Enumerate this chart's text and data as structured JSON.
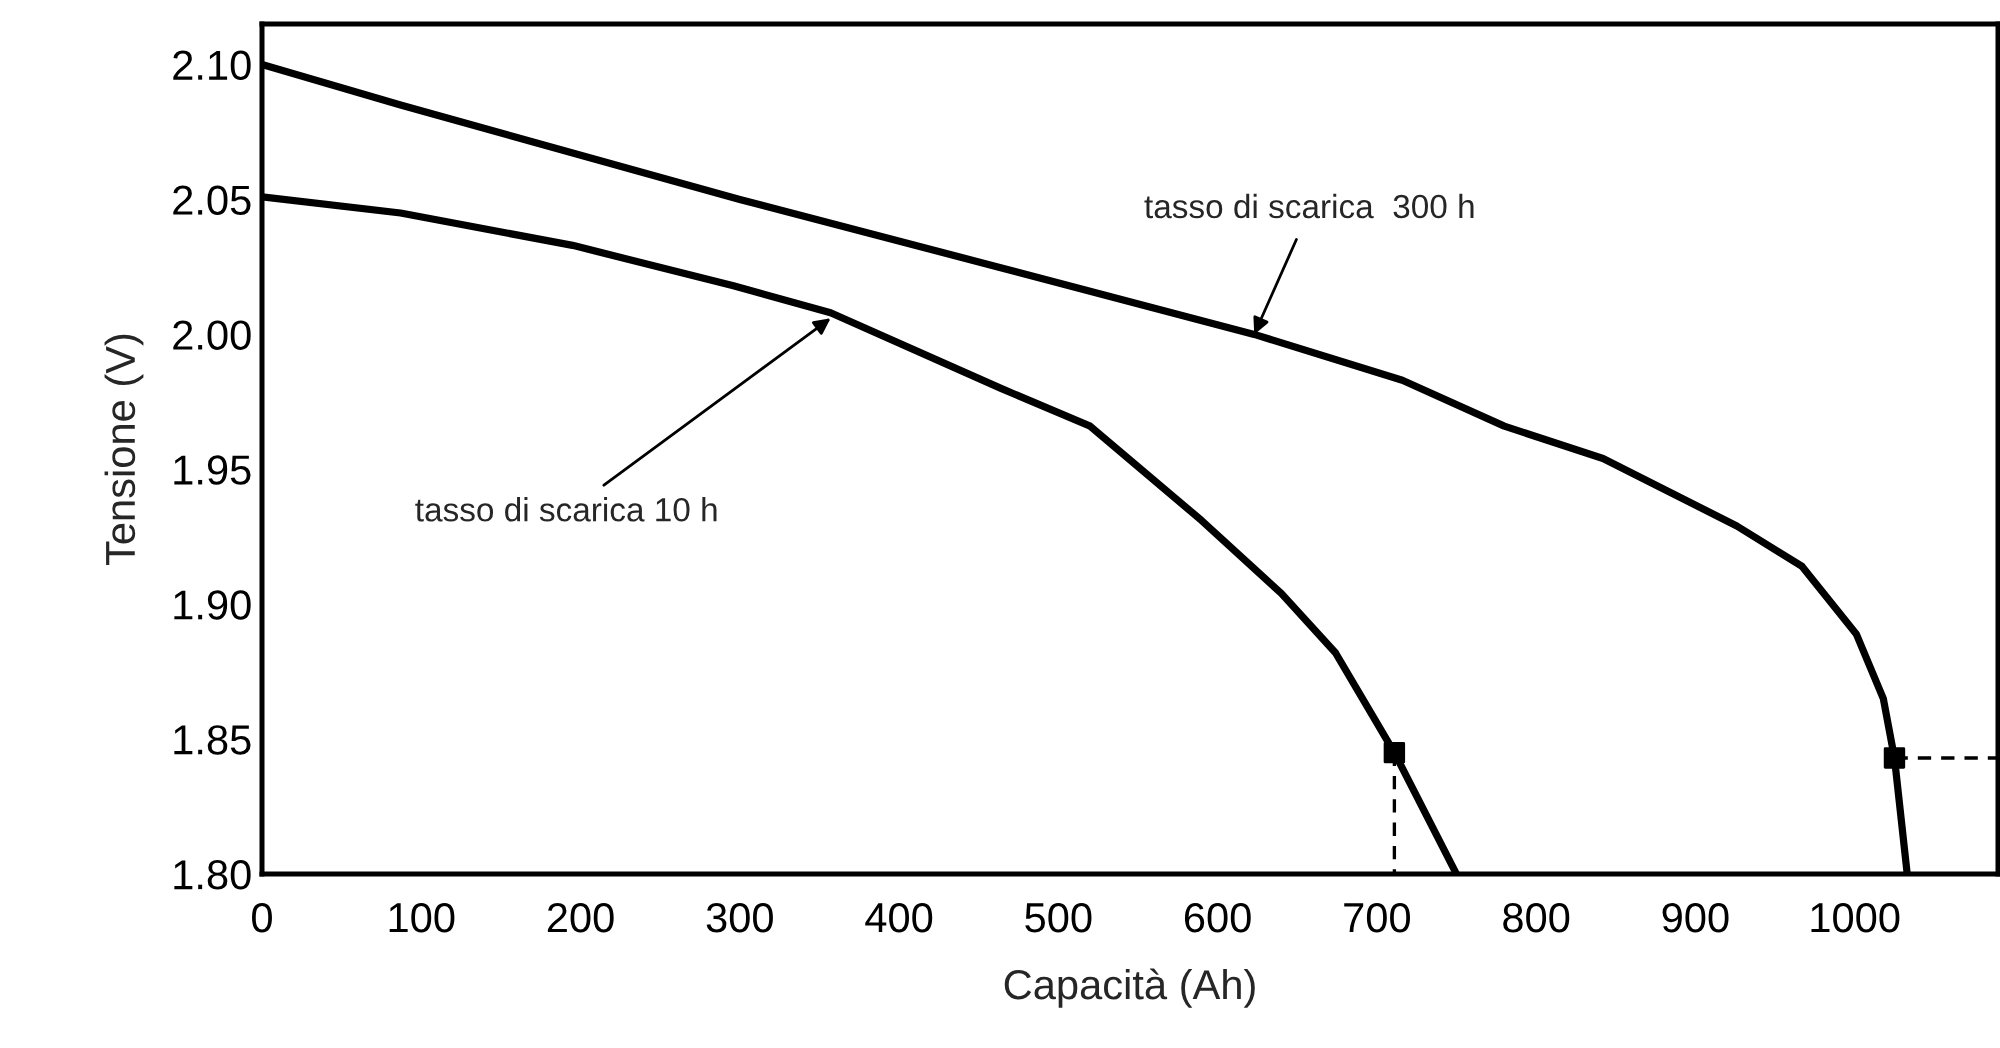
{
  "chart_data": {
    "type": "line",
    "xlabel": "Capacità (Ah)",
    "ylabel": "Tensione (V)",
    "xlim": [
      0,
      1090
    ],
    "ylim": [
      1.8,
      2.115
    ],
    "xticks": [
      0,
      100,
      200,
      300,
      400,
      500,
      600,
      700,
      800,
      900,
      1000
    ],
    "yticks": [
      {
        "value": 1.8,
        "label": "1.80"
      },
      {
        "value": 1.85,
        "label": "1.85"
      },
      {
        "value": 1.9,
        "label": "1.90"
      },
      {
        "value": 1.95,
        "label": "1.95"
      },
      {
        "value": 2.0,
        "label": "2.00"
      },
      {
        "value": 2.05,
        "label": "2.05"
      },
      {
        "value": 2.1,
        "label": "2.10"
      }
    ],
    "grid": false,
    "series": [
      {
        "color": "#000000",
        "x": [
          0,
          87,
          195,
          296,
          357,
          464,
          520,
          590,
          640,
          674,
          711,
          750
        ],
        "values": [
          2.051,
          2.045,
          2.033,
          2.018,
          2.008,
          1.98,
          1.966,
          1.931,
          1.904,
          1.882,
          1.845,
          1.8
        ]
      },
      {
        "color": "#000000",
        "x": [
          0,
          87,
          300,
          462,
          623,
          716,
          780,
          842,
          926,
          967,
          1001,
          1018,
          1025,
          1033
        ],
        "values": [
          2.1,
          2.085,
          2.05,
          2.025,
          2.0,
          1.983,
          1.966,
          1.954,
          1.929,
          1.914,
          1.889,
          1.865,
          1.843,
          1.8
        ]
      },
      {
        "type": "scatter",
        "marker": "square",
        "color": "#000000",
        "x": [
          711,
          1025
        ],
        "values": [
          1.845,
          1.843
        ]
      },
      {
        "line_style": "dashed",
        "color": "#000000",
        "x": [
          711,
          711
        ],
        "values": [
          1.845,
          1.8
        ]
      },
      {
        "line_style": "dashed",
        "color": "#000000",
        "x": [
          1025,
          1090
        ],
        "values": [
          1.843,
          1.843
        ]
      }
    ],
    "annotations": [
      {
        "text": "tasso di scarica 10 h",
        "x": 357,
        "y": 2.006
      },
      {
        "text": "tasso di scarica  300 h",
        "x": 623,
        "y": 2.0
      }
    ]
  }
}
